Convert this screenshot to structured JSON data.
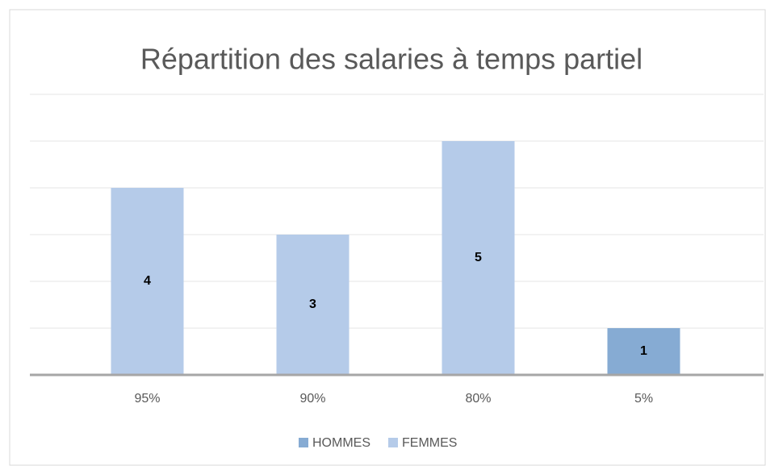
{
  "chart_data": {
    "type": "bar",
    "stacked": true,
    "title": "Répartition des salaries à temps partiel",
    "categories": [
      "95%",
      "90%",
      "80%",
      "5%"
    ],
    "series": [
      {
        "name": "HOMMES",
        "color": "#86abd3",
        "values": [
          null,
          null,
          null,
          1
        ]
      },
      {
        "name": "FEMMES",
        "color": "#b5cbe9",
        "values": [
          4,
          3,
          5,
          null
        ]
      }
    ],
    "ylim": [
      0,
      6
    ],
    "yticks": [
      0,
      1,
      2,
      3,
      4,
      5,
      6
    ],
    "grid": true,
    "legend": "bottom"
  }
}
